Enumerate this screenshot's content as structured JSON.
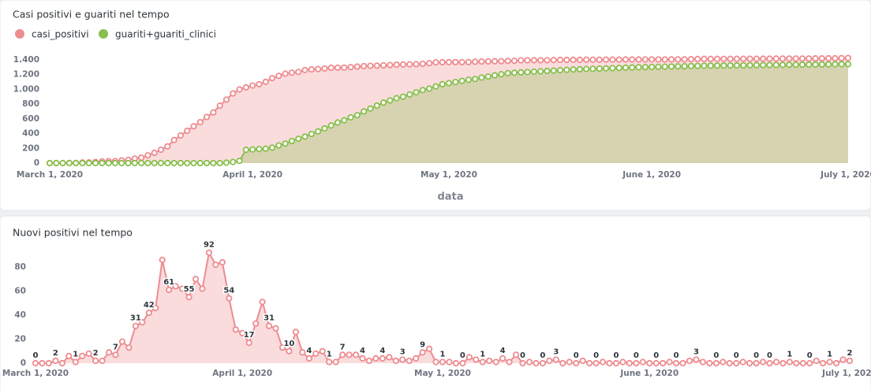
{
  "chart_data": [
    {
      "type": "area",
      "title": "Casi positivi e guariti nel tempo",
      "xlabel": "data",
      "x": [
        "2020-03-01",
        "2020-03-02",
        "2020-03-03",
        "2020-03-04",
        "2020-03-05",
        "2020-03-06",
        "2020-03-07",
        "2020-03-08",
        "2020-03-09",
        "2020-03-10",
        "2020-03-11",
        "2020-03-12",
        "2020-03-13",
        "2020-03-14",
        "2020-03-15",
        "2020-03-16",
        "2020-03-17",
        "2020-03-18",
        "2020-03-19",
        "2020-03-20",
        "2020-03-21",
        "2020-03-22",
        "2020-03-23",
        "2020-03-24",
        "2020-03-25",
        "2020-03-26",
        "2020-03-27",
        "2020-03-28",
        "2020-03-29",
        "2020-03-30",
        "2020-03-31",
        "2020-04-01",
        "2020-04-02",
        "2020-04-03",
        "2020-04-04",
        "2020-04-05",
        "2020-04-06",
        "2020-04-07",
        "2020-04-08",
        "2020-04-09",
        "2020-04-10",
        "2020-04-11",
        "2020-04-12",
        "2020-04-13",
        "2020-04-14",
        "2020-04-15",
        "2020-04-16",
        "2020-04-17",
        "2020-04-18",
        "2020-04-19",
        "2020-04-20",
        "2020-04-21",
        "2020-04-22",
        "2020-04-23",
        "2020-04-24",
        "2020-04-25",
        "2020-04-26",
        "2020-04-27",
        "2020-04-28",
        "2020-04-29",
        "2020-04-30",
        "2020-05-01",
        "2020-05-02",
        "2020-05-03",
        "2020-05-04",
        "2020-05-05",
        "2020-05-06",
        "2020-05-07",
        "2020-05-08",
        "2020-05-09",
        "2020-05-10",
        "2020-05-11",
        "2020-05-12",
        "2020-05-13",
        "2020-05-14",
        "2020-05-15",
        "2020-05-16",
        "2020-05-17",
        "2020-05-18",
        "2020-05-19",
        "2020-05-20",
        "2020-05-21",
        "2020-05-22",
        "2020-05-23",
        "2020-05-24",
        "2020-05-25",
        "2020-05-26",
        "2020-05-27",
        "2020-05-28",
        "2020-05-29",
        "2020-05-30",
        "2020-05-31",
        "2020-06-01",
        "2020-06-02",
        "2020-06-03",
        "2020-06-04",
        "2020-06-05",
        "2020-06-06",
        "2020-06-07",
        "2020-06-08",
        "2020-06-09",
        "2020-06-10",
        "2020-06-11",
        "2020-06-12",
        "2020-06-13",
        "2020-06-14",
        "2020-06-15",
        "2020-06-16",
        "2020-06-17",
        "2020-06-18",
        "2020-06-19",
        "2020-06-20",
        "2020-06-21",
        "2020-06-22",
        "2020-06-23",
        "2020-06-24",
        "2020-06-25",
        "2020-06-26",
        "2020-06-27",
        "2020-06-28",
        "2020-06-29",
        "2020-06-30",
        "2020-07-01"
      ],
      "series": [
        {
          "name": "casi_positivi",
          "color": "#ed8c90",
          "values": [
            0,
            0,
            0,
            2,
            2,
            8,
            9,
            15,
            23,
            25,
            27,
            36,
            43,
            61,
            74,
            105,
            139,
            181,
            227,
            313,
            374,
            438,
            500,
            555,
            625,
            687,
            779,
            861,
            945,
            999,
            1027,
            1052,
            1069,
            1102,
            1153,
            1184,
            1213,
            1226,
            1236,
            1262,
            1271,
            1275,
            1283,
            1293,
            1294,
            1295,
            1302,
            1309,
            1316,
            1320,
            1322,
            1326,
            1330,
            1335,
            1337,
            1340,
            1342,
            1346,
            1355,
            1367,
            1368,
            1369,
            1370,
            1370,
            1370,
            1375,
            1378,
            1379,
            1381,
            1382,
            1386,
            1387,
            1394,
            1394,
            1395,
            1395,
            1395,
            1397,
            1400,
            1400,
            1401,
            1401,
            1403,
            1403,
            1403,
            1404,
            1404,
            1404,
            1405,
            1405,
            1405,
            1406,
            1406,
            1406,
            1406,
            1407,
            1407,
            1407,
            1409,
            1412,
            1413,
            1413,
            1413,
            1414,
            1414,
            1414,
            1415,
            1415,
            1415,
            1416,
            1416,
            1417,
            1417,
            1418,
            1418,
            1418,
            1418,
            1420,
            1420,
            1421,
            1421,
            1424,
            1426
          ]
        },
        {
          "name": "guariti+guariti_clinici",
          "color": "#88bf4d",
          "values": [
            0,
            0,
            0,
            0,
            0,
            0,
            0,
            0,
            0,
            0,
            0,
            0,
            0,
            0,
            0,
            0,
            0,
            0,
            0,
            0,
            0,
            0,
            0,
            0,
            0,
            0,
            0,
            5,
            15,
            30,
            180,
            185,
            190,
            195,
            210,
            240,
            265,
            300,
            330,
            360,
            395,
            430,
            470,
            510,
            550,
            580,
            620,
            650,
            700,
            740,
            780,
            820,
            850,
            880,
            900,
            930,
            960,
            990,
            1010,
            1040,
            1070,
            1085,
            1100,
            1115,
            1130,
            1140,
            1160,
            1175,
            1190,
            1205,
            1220,
            1225,
            1230,
            1235,
            1240,
            1245,
            1250,
            1255,
            1260,
            1265,
            1270,
            1273,
            1276,
            1279,
            1282,
            1285,
            1288,
            1291,
            1294,
            1297,
            1300,
            1302,
            1304,
            1306,
            1308,
            1310,
            1312,
            1314,
            1316,
            1318,
            1320,
            1321,
            1322,
            1323,
            1324,
            1325,
            1326,
            1327,
            1328,
            1329,
            1330,
            1331,
            1332,
            1333,
            1334,
            1335,
            1336,
            1337,
            1338,
            1339,
            1340,
            1341,
            1342
          ]
        }
      ],
      "xlim": [
        "2020-03-01",
        "2020-07-01"
      ],
      "xticks": [
        {
          "value": "2020-03-01",
          "label": "March 1, 2020"
        },
        {
          "value": "2020-04-01",
          "label": "April 1, 2020"
        },
        {
          "value": "2020-05-01",
          "label": "May 1, 2020"
        },
        {
          "value": "2020-06-01",
          "label": "June 1, 2020"
        },
        {
          "value": "2020-07-01",
          "label": "July 1, 2020"
        }
      ],
      "ylim": [
        0,
        1400
      ],
      "yticks": [
        0,
        200,
        400,
        600,
        800,
        {
          "value": 1000,
          "label": "1.000"
        },
        {
          "value": 1200,
          "label": "1.200"
        },
        {
          "value": 1400,
          "label": "1.400"
        }
      ],
      "legend": "top-left"
    },
    {
      "type": "area",
      "title": "Nuovi positivi nel tempo",
      "color": "#ed8c90",
      "x": [
        "2020-03-01",
        "2020-03-02",
        "2020-03-03",
        "2020-03-04",
        "2020-03-05",
        "2020-03-06",
        "2020-03-07",
        "2020-03-08",
        "2020-03-09",
        "2020-03-10",
        "2020-03-11",
        "2020-03-12",
        "2020-03-13",
        "2020-03-14",
        "2020-03-15",
        "2020-03-16",
        "2020-03-17",
        "2020-03-18",
        "2020-03-19",
        "2020-03-20",
        "2020-03-21",
        "2020-03-22",
        "2020-03-23",
        "2020-03-24",
        "2020-03-25",
        "2020-03-26",
        "2020-03-27",
        "2020-03-28",
        "2020-03-29",
        "2020-03-30",
        "2020-03-31",
        "2020-04-01",
        "2020-04-02",
        "2020-04-03",
        "2020-04-04",
        "2020-04-05",
        "2020-04-06",
        "2020-04-07",
        "2020-04-08",
        "2020-04-09",
        "2020-04-10",
        "2020-04-11",
        "2020-04-12",
        "2020-04-13",
        "2020-04-14",
        "2020-04-15",
        "2020-04-16",
        "2020-04-17",
        "2020-04-18",
        "2020-04-19",
        "2020-04-20",
        "2020-04-21",
        "2020-04-22",
        "2020-04-23",
        "2020-04-24",
        "2020-04-25",
        "2020-04-26",
        "2020-04-27",
        "2020-04-28",
        "2020-04-29",
        "2020-04-30",
        "2020-05-01",
        "2020-05-02",
        "2020-05-03",
        "2020-05-04",
        "2020-05-05",
        "2020-05-06",
        "2020-05-07",
        "2020-05-08",
        "2020-05-09",
        "2020-05-10",
        "2020-05-11",
        "2020-05-12",
        "2020-05-13",
        "2020-05-14",
        "2020-05-15",
        "2020-05-16",
        "2020-05-17",
        "2020-05-18",
        "2020-05-19",
        "2020-05-20",
        "2020-05-21",
        "2020-05-22",
        "2020-05-23",
        "2020-05-24",
        "2020-05-25",
        "2020-05-26",
        "2020-05-27",
        "2020-05-28",
        "2020-05-29",
        "2020-05-30",
        "2020-05-31",
        "2020-06-01",
        "2020-06-02",
        "2020-06-03",
        "2020-06-04",
        "2020-06-05",
        "2020-06-06",
        "2020-06-07",
        "2020-06-08",
        "2020-06-09",
        "2020-06-10",
        "2020-06-11",
        "2020-06-12",
        "2020-06-13",
        "2020-06-14",
        "2020-06-15",
        "2020-06-16",
        "2020-06-17",
        "2020-06-18",
        "2020-06-19",
        "2020-06-20",
        "2020-06-21",
        "2020-06-22",
        "2020-06-23",
        "2020-06-24",
        "2020-06-25",
        "2020-06-26",
        "2020-06-27",
        "2020-06-28",
        "2020-06-29",
        "2020-06-30",
        "2020-07-01"
      ],
      "values": [
        0,
        0,
        0,
        2,
        0,
        6,
        1,
        6,
        8,
        2,
        2,
        9,
        7,
        18,
        13,
        31,
        34,
        42,
        46,
        86,
        61,
        64,
        62,
        55,
        70,
        62,
        92,
        82,
        84,
        54,
        28,
        25,
        17,
        33,
        51,
        31,
        29,
        13,
        10,
        26,
        9,
        4,
        8,
        10,
        1,
        1,
        7,
        7,
        7,
        4,
        2,
        4,
        4,
        5,
        2,
        3,
        2,
        4,
        9,
        12,
        1,
        1,
        1,
        0,
        0,
        5,
        3,
        1,
        2,
        1,
        4,
        1,
        7,
        0,
        1,
        0,
        0,
        2,
        3,
        0,
        1,
        0,
        2,
        0,
        0,
        1,
        0,
        0,
        1,
        0,
        0,
        1,
        0,
        0,
        0,
        1,
        0,
        0,
        2,
        3,
        1,
        0,
        0,
        1,
        0,
        0,
        1,
        0,
        0,
        1,
        0,
        1,
        0,
        1,
        0,
        0,
        0,
        2,
        0,
        1,
        0,
        3,
        2
      ],
      "value_labels": [
        "0",
        null,
        null,
        "2",
        null,
        null,
        "1",
        null,
        null,
        "2",
        null,
        null,
        "7",
        null,
        null,
        "31",
        null,
        "42",
        null,
        null,
        "61",
        null,
        null,
        "55",
        null,
        null,
        "92",
        null,
        null,
        "54",
        null,
        null,
        "17",
        null,
        null,
        "31",
        null,
        null,
        "10",
        null,
        null,
        "4",
        null,
        null,
        "1",
        null,
        "7",
        null,
        null,
        "4",
        null,
        null,
        "4",
        null,
        null,
        "3",
        null,
        null,
        "9",
        null,
        null,
        "1",
        null,
        null,
        "0",
        null,
        null,
        "1",
        null,
        null,
        "4",
        null,
        null,
        "0",
        null,
        null,
        "0",
        null,
        "3",
        null,
        null,
        "0",
        null,
        null,
        "0",
        null,
        null,
        "0",
        null,
        null,
        "0",
        null,
        null,
        "0",
        null,
        null,
        "0",
        null,
        null,
        "3",
        null,
        null,
        "0",
        null,
        null,
        "0",
        null,
        null,
        "0",
        null,
        "0",
        null,
        null,
        "1",
        null,
        null,
        "0",
        null,
        null,
        "1",
        null,
        null,
        "2"
      ],
      "xlim": [
        "2020-03-01",
        "2020-07-01"
      ],
      "xticks": [
        {
          "value": "2020-03-01",
          "label": "March 1, 2020"
        },
        {
          "value": "2020-04-01",
          "label": "April 1, 2020"
        },
        {
          "value": "2020-05-01",
          "label": "May 1, 2020"
        },
        {
          "value": "2020-06-01",
          "label": "June 1, 2020"
        },
        {
          "value": "2020-07-01",
          "label": "July 1, 2020"
        }
      ],
      "ylim": [
        0,
        100
      ],
      "yticks": [
        0,
        20,
        40,
        60,
        80
      ]
    }
  ]
}
